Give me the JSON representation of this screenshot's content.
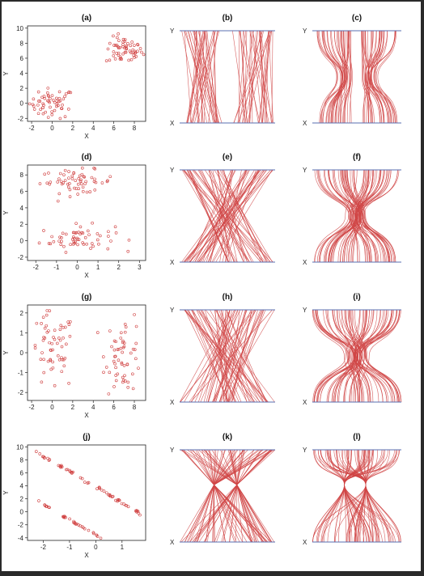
{
  "chart_data": [
    {
      "id": "a",
      "title": "(a)",
      "type": "scatter",
      "xlabel": "X",
      "ylabel": "Y",
      "xlim": [
        -2.4,
        9.1
      ],
      "ylim": [
        -2.4,
        10.3
      ],
      "xticks": [
        "-2",
        "0",
        "2",
        "4",
        "6",
        "8"
      ],
      "yticks": [
        "-2",
        "0",
        "2",
        "4",
        "6",
        "8",
        "10"
      ],
      "clusters": [
        {
          "cx": 0,
          "cy": 0,
          "sx": 1.1,
          "sy": 1.0,
          "n": 60
        },
        {
          "cx": 7,
          "cy": 7,
          "sx": 0.9,
          "sy": 0.9,
          "n": 60
        }
      ]
    },
    {
      "id": "b",
      "title": "(b)",
      "type": "parallel-lines",
      "top_label": "Y",
      "bottom_label": "X",
      "pattern": "two-groups-vertical"
    },
    {
      "id": "c",
      "title": "(c)",
      "type": "parallel-curves",
      "top_label": "Y",
      "bottom_label": "X",
      "pattern": "two-groups-waist"
    },
    {
      "id": "d",
      "title": "(d)",
      "type": "scatter",
      "xlabel": "X",
      "ylabel": "Y",
      "xlim": [
        -2.4,
        3.3
      ],
      "ylim": [
        -2.4,
        9.2
      ],
      "xticks": [
        "-2",
        "-1",
        "0",
        "1",
        "2",
        "3"
      ],
      "yticks": [
        "-2",
        "0",
        "2",
        "4",
        "6",
        "8"
      ],
      "clusters": [
        {
          "cx": 0,
          "cy": 0.3,
          "sx": 0.9,
          "sy": 0.8,
          "n": 60
        },
        {
          "cx": 0,
          "cy": 7.2,
          "sx": 0.9,
          "sy": 0.7,
          "n": 60
        }
      ]
    },
    {
      "id": "e",
      "title": "(e)",
      "type": "parallel-lines",
      "top_label": "Y",
      "bottom_label": "X",
      "pattern": "crossing"
    },
    {
      "id": "f",
      "title": "(f)",
      "type": "parallel-curves",
      "top_label": "Y",
      "bottom_label": "X",
      "pattern": "crossing-waist"
    },
    {
      "id": "g",
      "title": "(g)",
      "type": "scatter",
      "xlabel": "X",
      "ylabel": "Y",
      "xlim": [
        -2.4,
        9.1
      ],
      "ylim": [
        -2.4,
        2.4
      ],
      "xticks": [
        "-2",
        "0",
        "2",
        "4",
        "6",
        "8"
      ],
      "yticks": [
        "-2",
        "-1",
        "0",
        "1",
        "2"
      ],
      "clusters": [
        {
          "cx": 0,
          "cy": 0,
          "sx": 1.1,
          "sy": 1.0,
          "n": 60
        },
        {
          "cx": 7,
          "cy": 0,
          "sx": 0.9,
          "sy": 1.0,
          "n": 60
        }
      ]
    },
    {
      "id": "h",
      "title": "(h)",
      "type": "parallel-lines",
      "top_label": "Y",
      "bottom_label": "X",
      "pattern": "crossing-wide"
    },
    {
      "id": "i",
      "title": "(i)",
      "type": "parallel-curves",
      "top_label": "Y",
      "bottom_label": "X",
      "pattern": "crossing-wide-waist"
    },
    {
      "id": "j",
      "title": "(j)",
      "type": "scatter",
      "xlabel": "X",
      "ylabel": "Y",
      "xlim": [
        -2.6,
        1.9
      ],
      "ylim": [
        -4.4,
        10.3
      ],
      "xticks": [
        "-2",
        "-1",
        "0",
        "1"
      ],
      "yticks": [
        "-4",
        "-2",
        "0",
        "2",
        "4",
        "6",
        "8",
        "10"
      ],
      "lines": [
        {
          "slope": -2.4,
          "intercept": 3.8,
          "n": 60
        },
        {
          "slope": -2.4,
          "intercept": -3.6,
          "n": 60
        }
      ]
    },
    {
      "id": "k",
      "title": "(k)",
      "type": "parallel-lines",
      "top_label": "Y",
      "bottom_label": "X",
      "pattern": "two-foci"
    },
    {
      "id": "l",
      "title": "(l)",
      "type": "parallel-curves",
      "top_label": "Y",
      "bottom_label": "X",
      "pattern": "two-foci-waist"
    }
  ],
  "colors": {
    "point": "#d04040",
    "line": "#d04545",
    "axis_line": "#5a6fb0",
    "frame": "#222222"
  }
}
